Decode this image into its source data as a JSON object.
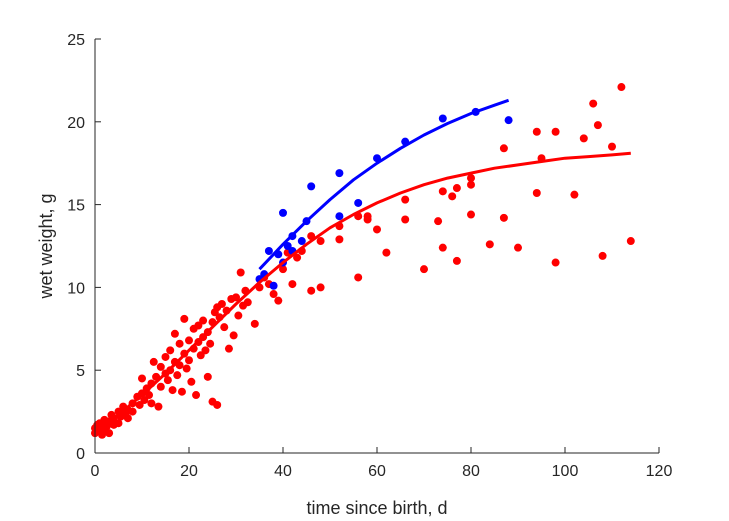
{
  "chart_data": {
    "type": "scatter",
    "xlabel": "time since birth, d",
    "ylabel": "wet weight, g",
    "xlim": [
      0,
      120
    ],
    "ylim": [
      0,
      25
    ],
    "xticks": [
      "0",
      "20",
      "40",
      "60",
      "80",
      "100",
      "120"
    ],
    "yticks": [
      "0",
      "5",
      "10",
      "15",
      "20",
      "25"
    ],
    "grid": false,
    "box": "open",
    "series": [
      {
        "color": "#ff0000",
        "kind": "points",
        "points": [
          [
            0,
            1.2
          ],
          [
            0,
            1.5
          ],
          [
            0.5,
            1.7
          ],
          [
            1,
            1.3
          ],
          [
            1,
            1.8
          ],
          [
            1.5,
            1.1
          ],
          [
            2,
            1.4
          ],
          [
            2,
            2
          ],
          [
            2.5,
            1.6
          ],
          [
            3,
            1.2
          ],
          [
            3,
            1.9
          ],
          [
            3.5,
            2.3
          ],
          [
            4,
            1.7
          ],
          [
            4,
            2.1
          ],
          [
            5,
            2.5
          ],
          [
            5,
            1.8
          ],
          [
            5.5,
            2.2
          ],
          [
            6,
            2.8
          ],
          [
            6.5,
            2.4
          ],
          [
            7,
            2.1
          ],
          [
            7,
            2.6
          ],
          [
            8,
            3
          ],
          [
            8,
            2.5
          ],
          [
            9,
            3.4
          ],
          [
            9.5,
            2.9
          ],
          [
            10,
            3.6
          ],
          [
            10,
            4.5
          ],
          [
            10.5,
            3.2
          ],
          [
            11,
            3.9
          ],
          [
            11.5,
            3.5
          ],
          [
            12,
            4.2
          ],
          [
            12,
            3
          ],
          [
            12.5,
            5.5
          ],
          [
            13,
            4.6
          ],
          [
            13.5,
            2.8
          ],
          [
            14,
            5.2
          ],
          [
            14,
            4
          ],
          [
            15,
            4.8
          ],
          [
            15,
            5.8
          ],
          [
            15.5,
            4.4
          ],
          [
            16,
            6.2
          ],
          [
            16,
            5
          ],
          [
            16.5,
            3.8
          ],
          [
            17,
            7.2
          ],
          [
            17,
            5.5
          ],
          [
            17.5,
            4.7
          ],
          [
            18,
            6.6
          ],
          [
            18,
            5.3
          ],
          [
            18.5,
            3.7
          ],
          [
            19,
            8.1
          ],
          [
            19,
            6
          ],
          [
            19.5,
            5.1
          ],
          [
            20,
            6.8
          ],
          [
            20,
            5.6
          ],
          [
            20.5,
            4.3
          ],
          [
            21,
            7.5
          ],
          [
            21,
            6.3
          ],
          [
            21.5,
            3.5
          ],
          [
            22,
            7.7
          ],
          [
            22,
            6.7
          ],
          [
            22.5,
            5.9
          ],
          [
            23,
            8
          ],
          [
            23,
            7
          ],
          [
            23.5,
            6.2
          ],
          [
            24,
            7.3
          ],
          [
            24,
            4.6
          ],
          [
            24.5,
            6.6
          ],
          [
            25,
            3.1
          ],
          [
            25,
            7.9
          ],
          [
            25.5,
            8.5
          ],
          [
            26,
            8.8
          ],
          [
            26,
            2.9
          ],
          [
            26.5,
            8.2
          ],
          [
            27,
            9
          ],
          [
            27.5,
            7.6
          ],
          [
            28,
            8.6
          ],
          [
            28.5,
            6.3
          ],
          [
            29,
            9.3
          ],
          [
            29.5,
            7.1
          ],
          [
            30,
            9.4
          ],
          [
            30.5,
            8.3
          ],
          [
            31,
            10.9
          ],
          [
            31.5,
            8.9
          ],
          [
            32,
            9.8
          ],
          [
            32.5,
            9.1
          ],
          [
            34,
            7.8
          ],
          [
            35,
            10
          ],
          [
            36,
            10.6
          ],
          [
            37,
            10.2
          ],
          [
            38,
            9.6
          ],
          [
            39,
            9.2
          ],
          [
            40,
            11.1
          ],
          [
            41,
            12.1
          ],
          [
            42,
            10.2
          ],
          [
            43,
            11.8
          ],
          [
            44,
            12.2
          ],
          [
            46,
            9.8
          ],
          [
            46,
            13.1
          ],
          [
            48,
            10
          ],
          [
            48,
            12.8
          ],
          [
            52,
            13.7
          ],
          [
            52,
            12.9
          ],
          [
            56,
            10.6
          ],
          [
            56,
            14.3
          ],
          [
            58,
            14.1
          ],
          [
            58,
            14.3
          ],
          [
            60,
            13.5
          ],
          [
            62,
            12.1
          ],
          [
            66,
            14.1
          ],
          [
            66,
            15.3
          ],
          [
            70,
            11.1
          ],
          [
            73,
            14
          ],
          [
            74,
            15.8
          ],
          [
            74,
            12.4
          ],
          [
            76,
            15.5
          ],
          [
            77,
            16
          ],
          [
            77,
            11.6
          ],
          [
            80,
            16.6
          ],
          [
            80,
            14.4
          ],
          [
            80,
            16.2
          ],
          [
            84,
            12.6
          ],
          [
            87,
            18.4
          ],
          [
            87,
            14.2
          ],
          [
            90,
            12.4
          ],
          [
            94,
            15.7
          ],
          [
            94,
            19.4
          ],
          [
            95,
            17.8
          ],
          [
            98,
            11.5
          ],
          [
            98,
            19.4
          ],
          [
            102,
            15.6
          ],
          [
            104,
            19
          ],
          [
            106,
            21.1
          ],
          [
            107,
            19.8
          ],
          [
            108,
            11.9
          ],
          [
            110,
            18.5
          ],
          [
            112,
            22.1
          ],
          [
            114,
            12.8
          ]
        ]
      },
      {
        "color": "#0000ff",
        "kind": "points",
        "points": [
          [
            35,
            10.5
          ],
          [
            36,
            10.8
          ],
          [
            37,
            12.2
          ],
          [
            38,
            10.1
          ],
          [
            39,
            12
          ],
          [
            40,
            11.5
          ],
          [
            40,
            14.5
          ],
          [
            41,
            12.5
          ],
          [
            42,
            13.1
          ],
          [
            42,
            12.2
          ],
          [
            44,
            12.8
          ],
          [
            45,
            14
          ],
          [
            46,
            16.1
          ],
          [
            52,
            14.3
          ],
          [
            52,
            16.9
          ],
          [
            56,
            15.1
          ],
          [
            60,
            17.8
          ],
          [
            66,
            18.8
          ],
          [
            74,
            20.2
          ],
          [
            81,
            20.6
          ],
          [
            88,
            20.1
          ]
        ]
      },
      {
        "color": "#ff0000",
        "kind": "fit",
        "points": [
          [
            0,
            1.3
          ],
          [
            5,
            2.3
          ],
          [
            10,
            3.5
          ],
          [
            15,
            4.8
          ],
          [
            20,
            6.2
          ],
          [
            25,
            7.6
          ],
          [
            30,
            9
          ],
          [
            35,
            10.3
          ],
          [
            40,
            11.5
          ],
          [
            45,
            12.6
          ],
          [
            50,
            13.6
          ],
          [
            55,
            14.4
          ],
          [
            60,
            15.1
          ],
          [
            65,
            15.7
          ],
          [
            70,
            16.2
          ],
          [
            75,
            16.6
          ],
          [
            80,
            16.9
          ],
          [
            85,
            17.2
          ],
          [
            90,
            17.4
          ],
          [
            95,
            17.6
          ],
          [
            100,
            17.8
          ],
          [
            105,
            17.9
          ],
          [
            110,
            18
          ],
          [
            114,
            18.1
          ]
        ]
      },
      {
        "color": "#0000ff",
        "kind": "fit",
        "points": [
          [
            35,
            11.1
          ],
          [
            40,
            12.6
          ],
          [
            45,
            14
          ],
          [
            50,
            15.3
          ],
          [
            55,
            16.5
          ],
          [
            60,
            17.5
          ],
          [
            65,
            18.4
          ],
          [
            70,
            19.2
          ],
          [
            75,
            19.9
          ],
          [
            80,
            20.5
          ],
          [
            85,
            21
          ],
          [
            88,
            21.3
          ]
        ]
      }
    ]
  }
}
